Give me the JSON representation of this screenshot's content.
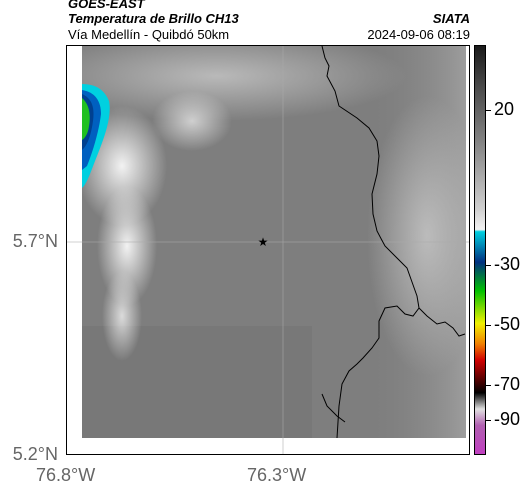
{
  "header": {
    "satellite": "GOES-EAST",
    "product": "Temperatura de Brillo CH13",
    "region": "Vía Medellín - Quibdó 50km",
    "org": "SIATA",
    "datetime": "2024-09-06 08:19"
  },
  "map": {
    "x_ticks": [
      "76.8°W",
      "76.3°W"
    ],
    "y_ticks": [
      "5.7°N",
      "5.2°N"
    ],
    "marker": "star"
  },
  "colorbar": {
    "ticks": [
      "20",
      "-30",
      "-50",
      "-70",
      "-90"
    ],
    "colors": {
      "warm": "#1a1a1a",
      "cold_cyan": "#00d0e0",
      "blue": "#003080",
      "green": "#00c000",
      "yellow": "#f0f000",
      "red": "#d00000",
      "black": "#000000",
      "magenta": "#c040c0"
    }
  }
}
